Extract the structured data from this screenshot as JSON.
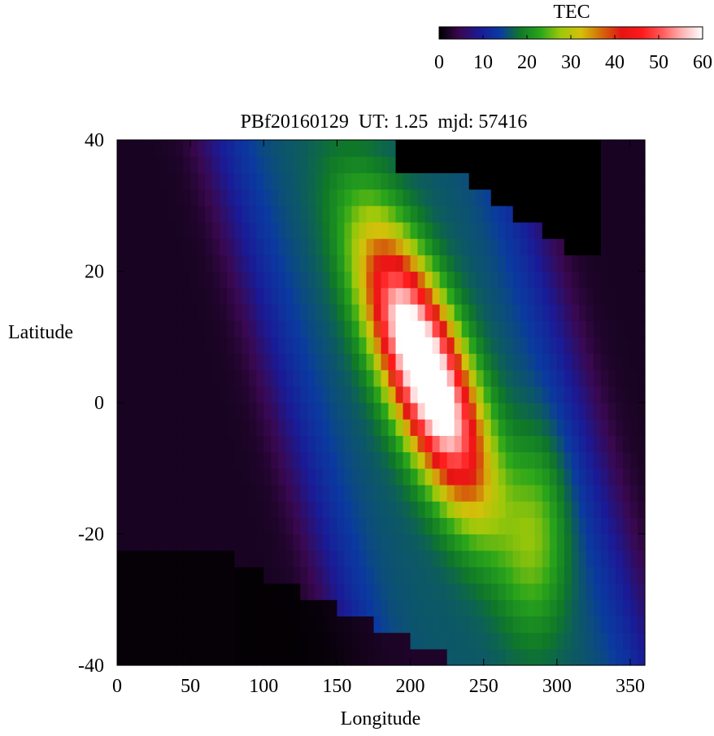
{
  "chart_data": {
    "type": "heatmap",
    "title": "PBf20160129  UT: 1.25  mjd: 57416",
    "xlabel": "Longitude",
    "ylabel": "Latitude",
    "xlim": [
      0,
      360
    ],
    "ylim": [
      -40,
      40
    ],
    "x_ticks": [
      "0",
      "50",
      "100",
      "150",
      "200",
      "250",
      "300",
      "350"
    ],
    "y_ticks": [
      "40",
      "20",
      "0",
      "-20",
      "-40"
    ],
    "grid": "cells 5 deg longitude x 2.5 deg latitude",
    "colorbar": {
      "label": "TEC",
      "range": [
        0,
        60
      ],
      "ticks": [
        "0",
        "10",
        "20",
        "30",
        "40",
        "50",
        "60"
      ],
      "colormap": [
        "#000000",
        "#3a0850",
        "#1a1a96",
        "#0a3aa0",
        "#0f7828",
        "#2aa61a",
        "#9ec80a",
        "#d4c00a",
        "#d46a0a",
        "#e41414",
        "#ff1a1a",
        "#ff5a5a",
        "#ffb4b4",
        "#ffffff"
      ]
    },
    "tec_model": {
      "background_tec": 2,
      "night_region_tec": 0,
      "main_peak": {
        "lon": 210,
        "lat": 5,
        "peak_tec": 56,
        "sigma_lon": 22,
        "sigma_lat": 16,
        "tilt_deg_lon_per_lat": 1.5
      },
      "secondary_peak": {
        "lon": 285,
        "lat": -20,
        "peak_tec": 28,
        "sigma_lon": 15,
        "sigma_lat": 10
      },
      "broad_band": {
        "lon_min": 110,
        "lon_max": 320,
        "tec": 14
      }
    }
  }
}
